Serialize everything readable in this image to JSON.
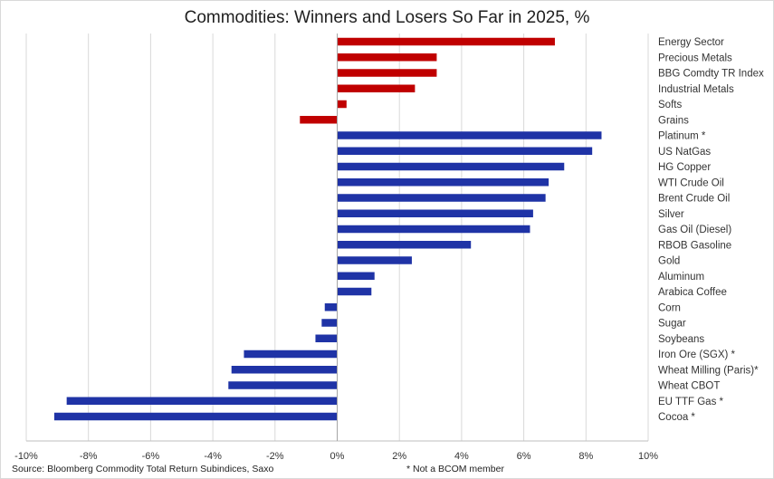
{
  "chart_data": {
    "type": "bar",
    "orientation": "horizontal",
    "title": "Commodities: Winners and Losers So Far in 2025, %",
    "xlim": [
      -10,
      10
    ],
    "x_ticks": [
      "-10%",
      "-8%",
      "-6%",
      "-4%",
      "-2%",
      "0%",
      "2%",
      "4%",
      "6%",
      "8%",
      "10%"
    ],
    "grid": true,
    "groups": [
      {
        "color": "#c00000",
        "items": [
          {
            "label": "Energy Sector",
            "value": 7.0
          },
          {
            "label": "Precious Metals",
            "value": 3.2
          },
          {
            "label": "BBG Comdty TR Index",
            "value": 3.2
          },
          {
            "label": "Industrial Metals",
            "value": 2.5
          },
          {
            "label": "Softs",
            "value": 0.3
          },
          {
            "label": "Grains",
            "value": -1.2
          }
        ]
      },
      {
        "color": "#1f33a6",
        "items": [
          {
            "label": "Platinum *",
            "value": 8.5
          },
          {
            "label": "US NatGas",
            "value": 8.2
          },
          {
            "label": "HG Copper",
            "value": 7.3
          },
          {
            "label": "WTI Crude Oil",
            "value": 6.8
          },
          {
            "label": "Brent Crude Oil",
            "value": 6.7
          },
          {
            "label": "Silver",
            "value": 6.3
          },
          {
            "label": "Gas Oil (Diesel)",
            "value": 6.2
          },
          {
            "label": "RBOB Gasoline",
            "value": 4.3
          },
          {
            "label": "Gold",
            "value": 2.4
          },
          {
            "label": "Aluminum",
            "value": 1.2
          },
          {
            "label": "Arabica Coffee",
            "value": 1.1
          },
          {
            "label": "Corn",
            "value": -0.4
          },
          {
            "label": "Sugar",
            "value": -0.5
          },
          {
            "label": "Soybeans",
            "value": -0.7
          },
          {
            "label": "Iron Ore (SGX) *",
            "value": -3.0
          },
          {
            "label": "Wheat Milling (Paris)*",
            "value": -3.4
          },
          {
            "label": "Wheat CBOT",
            "value": -3.5
          },
          {
            "label": "EU TTF Gas *",
            "value": -8.7
          },
          {
            "label": "Cocoa *",
            "value": -9.1
          }
        ]
      }
    ]
  },
  "footer": {
    "source": "Source: Bloomberg Commodity Total Return Subindices, Saxo",
    "note": "* Not a BCOM member"
  }
}
